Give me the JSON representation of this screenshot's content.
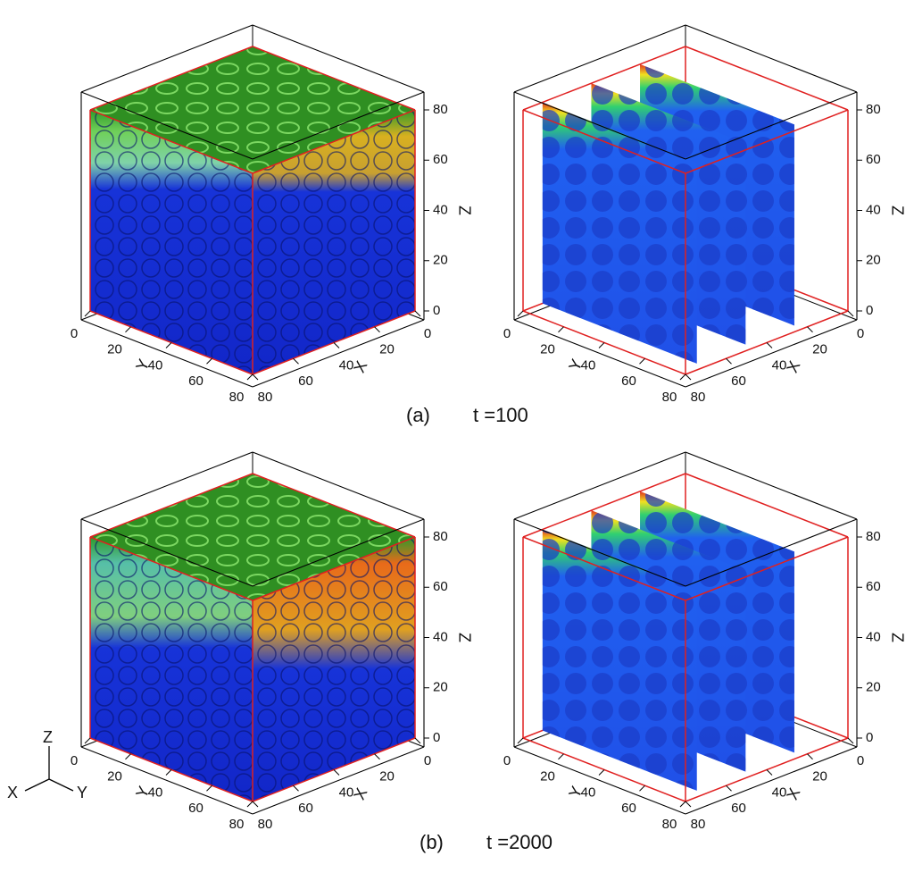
{
  "panels": [
    {
      "label": "(a)",
      "caption": "t =100"
    },
    {
      "label": "(b)",
      "caption": "t =2000"
    }
  ],
  "axes": {
    "x": "X",
    "y": "Y",
    "z": "Z",
    "ticks": [
      0,
      20,
      40,
      60,
      80
    ]
  },
  "triad": {
    "z": "Z",
    "x": "X",
    "y": "Y"
  }
}
